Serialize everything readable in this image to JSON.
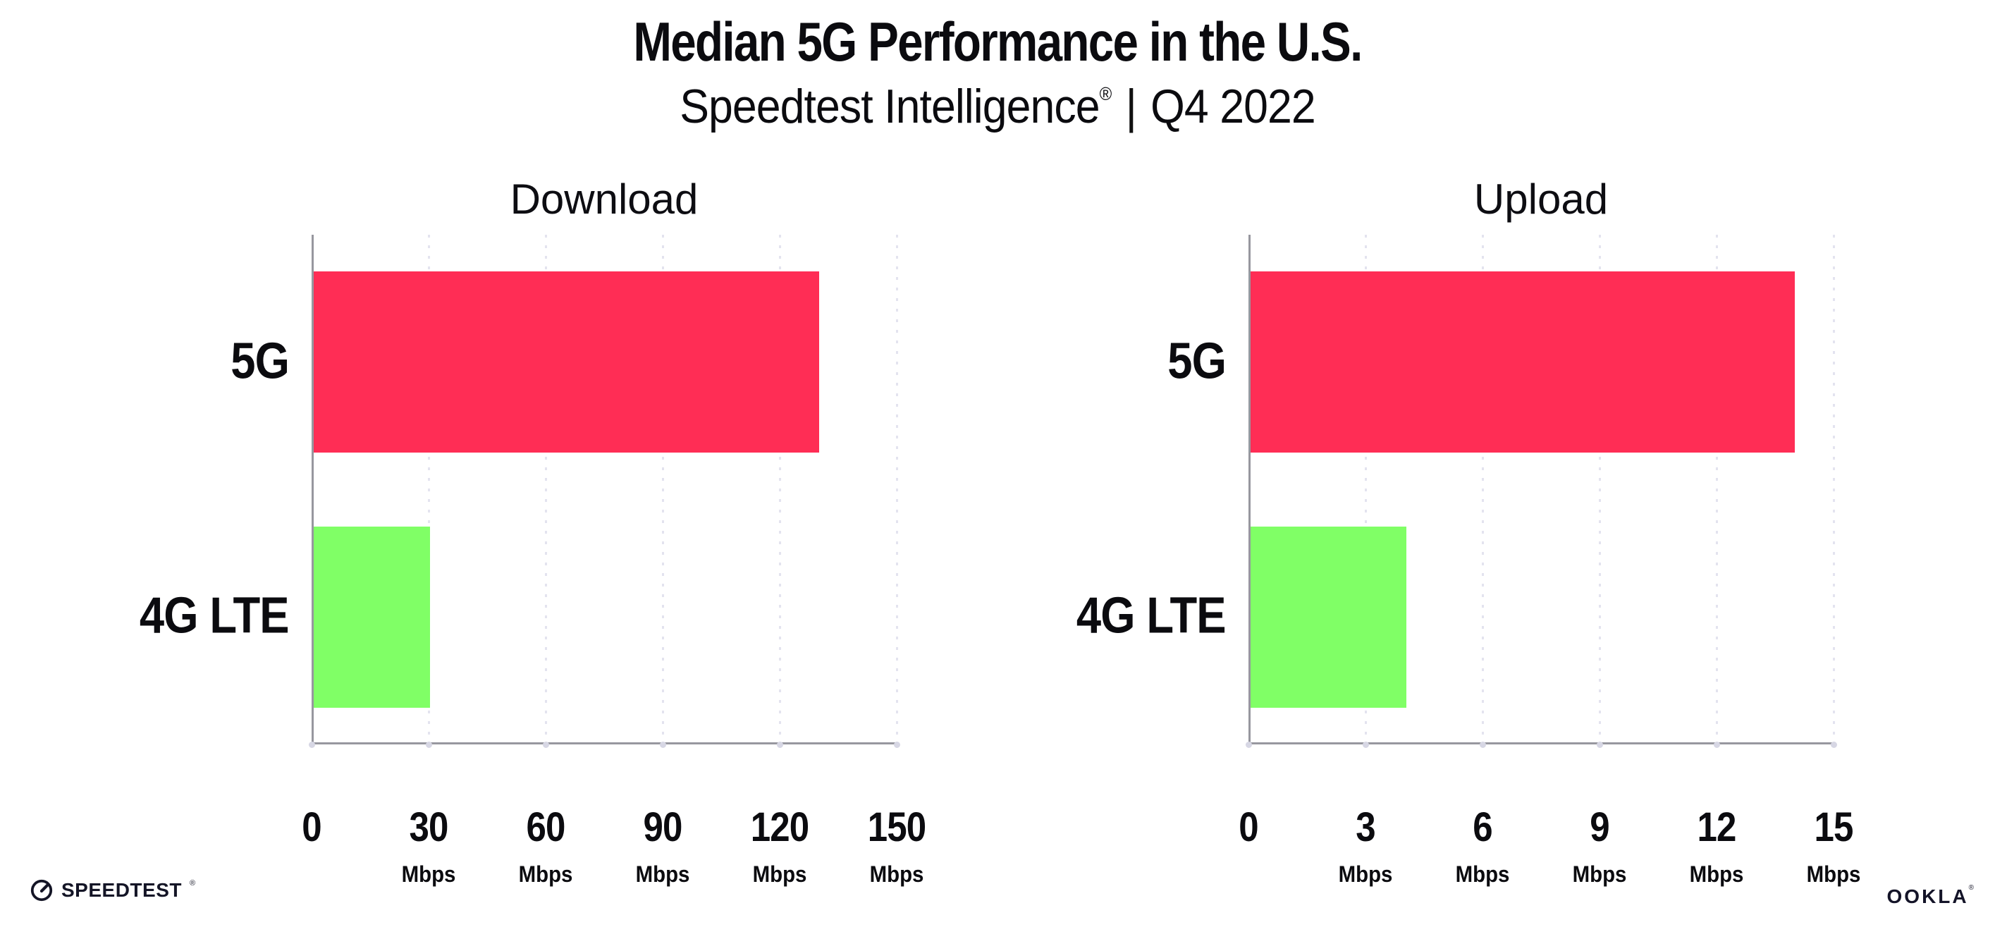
{
  "header": {
    "title": "Median 5G Performance in the U.S.",
    "subtitle_brand": "Speedtest Intelligence",
    "subtitle_reg": "®",
    "subtitle_sep": "|",
    "subtitle_period": "Q4 2022"
  },
  "colors": {
    "bar_5g": "#FF2D55",
    "bar_4g_lte": "#80FF66",
    "axis_line": "#97979F",
    "gridline": "#E3E3EF",
    "text": "#0B0B0F"
  },
  "chart_data": [
    {
      "type": "bar",
      "orientation": "horizontal",
      "title": "Download",
      "categories": [
        "5G",
        "4G LTE"
      ],
      "values": [
        130,
        30
      ],
      "unit": "Mbps",
      "xlim": [
        0,
        150
      ],
      "xticks": [
        0,
        30,
        60,
        90,
        120,
        150
      ],
      "tick_unit": "Mbps",
      "grid": "vertical-dotted",
      "legend": "none",
      "bar_colors": [
        "#FF2D55",
        "#80FF66"
      ]
    },
    {
      "type": "bar",
      "orientation": "horizontal",
      "title": "Upload",
      "categories": [
        "5G",
        "4G LTE"
      ],
      "values": [
        14,
        4
      ],
      "unit": "Mbps",
      "xlim": [
        0,
        15
      ],
      "xticks": [
        0,
        3,
        6,
        9,
        12,
        15
      ],
      "tick_unit": "Mbps",
      "grid": "vertical-dotted",
      "legend": "none",
      "bar_colors": [
        "#FF2D55",
        "#80FF66"
      ]
    }
  ],
  "footer": {
    "speedtest_wordmark": "SPEEDTEST",
    "speedtest_reg": "®",
    "ookla_wordmark": "OOKLA",
    "ookla_reg": "®"
  }
}
